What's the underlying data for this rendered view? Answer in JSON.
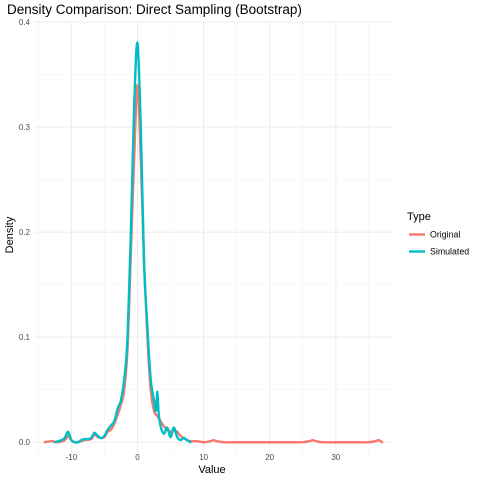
{
  "chart_data": {
    "type": "line",
    "title": "Density Comparison: Direct Sampling (Bootstrap)",
    "xlabel": "Value",
    "ylabel": "Density",
    "xlim": [
      -15.5,
      38.5
    ],
    "ylim": [
      -0.015,
      0.4
    ],
    "x_ticks": [
      -10,
      0,
      10,
      20,
      30
    ],
    "x_tick_labels": [
      "-10",
      "0",
      "10",
      "20",
      "30"
    ],
    "y_ticks": [
      0.0,
      0.1,
      0.2,
      0.3,
      0.4
    ],
    "y_tick_labels": [
      "0.0",
      "0.1",
      "0.2",
      "0.3",
      "0.4"
    ],
    "grid": true,
    "legend": {
      "title": "Type",
      "position": "right"
    },
    "series": [
      {
        "name": "Original",
        "color": "#F8766D",
        "x": [
          -14,
          -13,
          -12,
          -11,
          -10.5,
          -10,
          -9.5,
          -9,
          -8,
          -7,
          -6.5,
          -6,
          -5.5,
          -5,
          -4.5,
          -4,
          -3.5,
          -3,
          -2.5,
          -2,
          -1.5,
          -1,
          -0.5,
          0,
          0.5,
          1,
          1.5,
          2,
          2.5,
          3,
          3.5,
          4,
          4.5,
          5,
          5.5,
          6,
          6.5,
          7,
          7.5,
          8,
          9,
          10,
          11,
          11.5,
          12,
          13,
          14,
          15,
          16,
          18,
          20,
          22,
          24,
          25,
          26,
          26.5,
          27,
          28,
          30,
          32,
          34,
          35,
          36,
          36.5,
          37
        ],
        "values": [
          0.0,
          0.001,
          0.0,
          0.002,
          0.006,
          0.002,
          0.0,
          0.0,
          0.002,
          0.003,
          0.007,
          0.005,
          0.004,
          0.005,
          0.01,
          0.012,
          0.018,
          0.026,
          0.036,
          0.05,
          0.09,
          0.18,
          0.27,
          0.34,
          0.27,
          0.17,
          0.1,
          0.05,
          0.03,
          0.025,
          0.02,
          0.015,
          0.012,
          0.01,
          0.011,
          0.01,
          0.006,
          0.004,
          0.002,
          0.001,
          0.001,
          0.0,
          0.001,
          0.002,
          0.001,
          0.0,
          0.0,
          0.0,
          0.0,
          0.0,
          0.0,
          0.0,
          0.0,
          0.0,
          0.001,
          0.002,
          0.001,
          0.0,
          0.0,
          0.0,
          0.0,
          0.0,
          0.001,
          0.002,
          0.0
        ]
      },
      {
        "name": "Simulated",
        "color": "#00BFC4",
        "x": [
          -12.5,
          -12,
          -11.5,
          -11,
          -10.5,
          -10,
          -9.5,
          -9,
          -8.5,
          -8,
          -7.5,
          -7,
          -6.5,
          -6,
          -5.5,
          -5,
          -4.5,
          -4,
          -3.5,
          -3,
          -2.5,
          -2,
          -1.5,
          -1,
          -0.5,
          0,
          0.5,
          1,
          1.5,
          2,
          2.5,
          2.8,
          3,
          3.2,
          3.5,
          4,
          4.5,
          5,
          5.5,
          6,
          6.5,
          7,
          7.5,
          8
        ],
        "values": [
          0.0,
          0.001,
          0.002,
          0.004,
          0.01,
          0.002,
          0.0,
          0.0,
          0.002,
          0.003,
          0.003,
          0.004,
          0.009,
          0.006,
          0.004,
          0.006,
          0.012,
          0.016,
          0.02,
          0.032,
          0.04,
          0.06,
          0.1,
          0.2,
          0.32,
          0.38,
          0.3,
          0.17,
          0.11,
          0.06,
          0.04,
          0.03,
          0.048,
          0.028,
          0.015,
          0.008,
          0.014,
          0.005,
          0.014,
          0.005,
          0.002,
          0.004,
          0.002,
          0.0
        ]
      }
    ]
  }
}
